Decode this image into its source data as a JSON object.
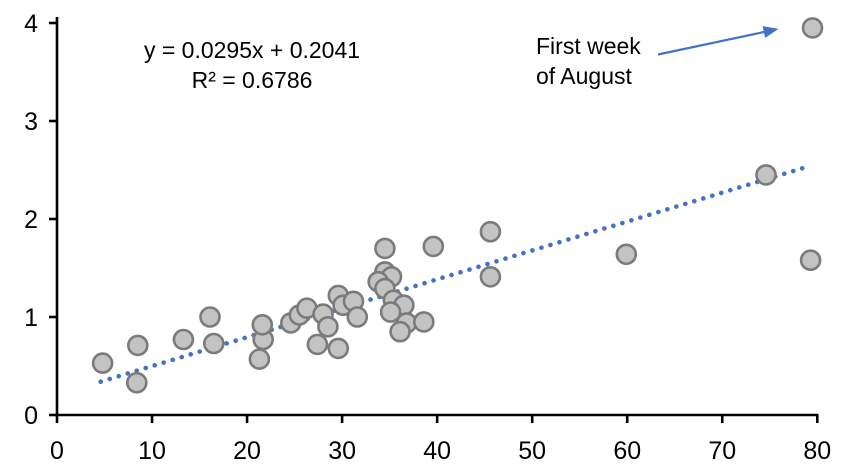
{
  "chart_data": {
    "type": "scatter",
    "title": "",
    "xlabel": "",
    "ylabel": "",
    "equation_line1": "y = 0.0295x + 0.2041",
    "equation_line2": "R² = 0.6786",
    "annotation": {
      "line1": "First week",
      "line2": "of August",
      "arrow_to_point": [
        79.5,
        3.95
      ]
    },
    "points": [
      [
        4.8,
        0.53
      ],
      [
        8.5,
        0.71
      ],
      [
        8.4,
        0.33
      ],
      [
        13.3,
        0.77
      ],
      [
        16.1,
        1.0
      ],
      [
        16.5,
        0.73
      ],
      [
        21.3,
        0.57
      ],
      [
        21.7,
        0.77
      ],
      [
        21.6,
        0.92
      ],
      [
        24.6,
        0.94
      ],
      [
        25.5,
        1.02
      ],
      [
        26.3,
        1.09
      ],
      [
        28.0,
        1.03
      ],
      [
        27.4,
        0.72
      ],
      [
        28.5,
        0.9
      ],
      [
        29.6,
        1.22
      ],
      [
        30.1,
        1.12
      ],
      [
        29.6,
        0.68
      ],
      [
        31.2,
        1.16
      ],
      [
        31.6,
        1.0
      ],
      [
        34.5,
        1.7
      ],
      [
        34.5,
        1.46
      ],
      [
        35.2,
        1.41
      ],
      [
        33.8,
        1.36
      ],
      [
        34.5,
        1.29
      ],
      [
        35.4,
        1.17
      ],
      [
        36.5,
        1.12
      ],
      [
        35.1,
        1.05
      ],
      [
        36.8,
        0.94
      ],
      [
        38.6,
        0.95
      ],
      [
        36.1,
        0.85
      ],
      [
        39.6,
        1.72
      ],
      [
        45.6,
        1.87
      ],
      [
        45.6,
        1.41
      ],
      [
        59.9,
        1.64
      ],
      [
        74.6,
        2.45
      ],
      [
        79.5,
        3.95
      ],
      [
        79.3,
        1.58
      ]
    ],
    "trendline": {
      "slope": 0.0295,
      "intercept": 0.2041,
      "x_start": 4.6,
      "x_end": 79.0,
      "style": "dotted"
    },
    "x_axis": {
      "min": 0,
      "max": 80,
      "ticks": [
        0,
        10,
        20,
        30,
        40,
        50,
        60,
        70,
        80
      ]
    },
    "y_axis": {
      "min": 0,
      "max": 4,
      "ticks": [
        0,
        1,
        2,
        3,
        4
      ]
    },
    "legend": null,
    "grid": false,
    "colors": {
      "marker_fill": "#c3c3c3",
      "marker_stroke": "#7b7b7b",
      "trend": "#4472c4",
      "arrow": "#4472c4",
      "axis": "#000000",
      "text": "#000000"
    }
  }
}
